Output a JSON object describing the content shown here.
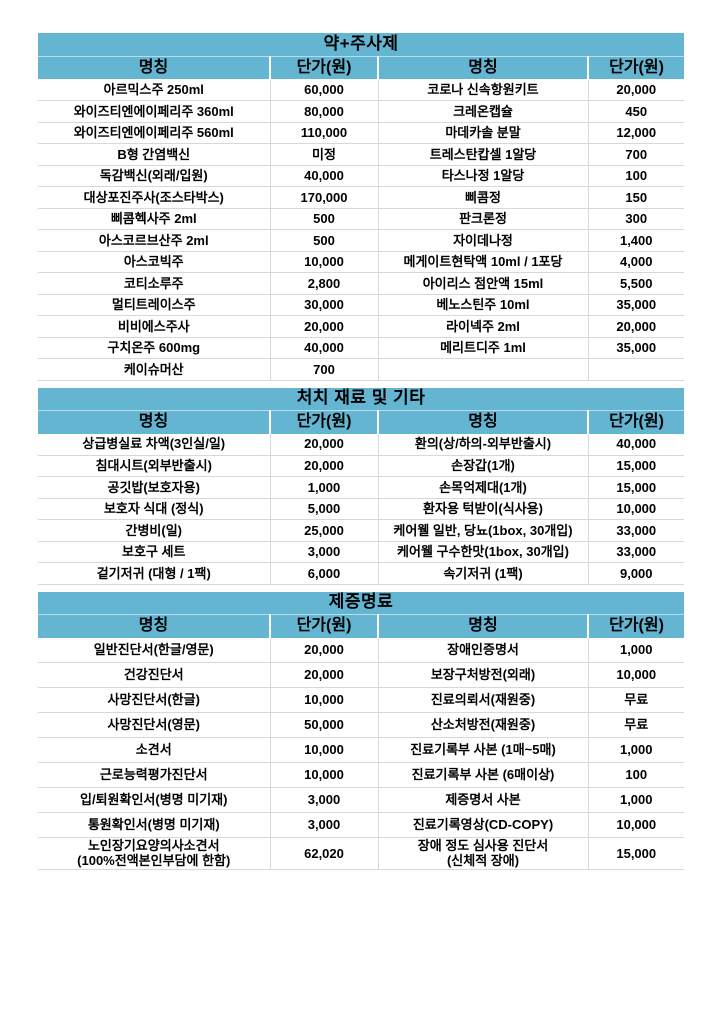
{
  "colors": {
    "header_bg": "#63b5d1",
    "grid_line": "#d8d8d8",
    "text": "#000000",
    "page_bg": "#ffffff"
  },
  "columns": [
    "명칭",
    "단가(원)",
    "명칭",
    "단가(원)"
  ],
  "sections": [
    {
      "title": "약+주사제",
      "rows": [
        [
          "아르믹스주 250ml",
          "60,000",
          "코로나 신속항원키트",
          "20,000"
        ],
        [
          "와이즈티엔에이페리주 360ml",
          "80,000",
          "크레온캡슐",
          "450"
        ],
        [
          "와이즈티엔에이페리주 560ml",
          "110,000",
          "마데카솔 분말",
          "12,000"
        ],
        [
          "B형 간염백신",
          "미정",
          "트레스탄캅셀 1알당",
          "700"
        ],
        [
          "독감백신(외래/입원)",
          "40,000",
          "타스나정 1알당",
          "100"
        ],
        [
          "대상포진주사(조스타박스)",
          "170,000",
          "삐콤정",
          "150"
        ],
        [
          "삐콤헥사주 2ml",
          "500",
          "판크론정",
          "300"
        ],
        [
          "아스코르브산주 2ml",
          "500",
          "자이데나정",
          "1,400"
        ],
        [
          "아스코빅주",
          "10,000",
          "메게이트현탁액 10ml / 1포당",
          "4,000"
        ],
        [
          "코티소루주",
          "2,800",
          "아이리스 점안액 15ml",
          "5,500"
        ],
        [
          "멀티트레이스주",
          "30,000",
          "베노스틴주 10ml",
          "35,000"
        ],
        [
          "비비에스주사",
          "20,000",
          "라이넥주 2ml",
          "20,000"
        ],
        [
          "구치온주 600mg",
          "40,000",
          "메리트디주 1ml",
          "35,000"
        ],
        [
          "케이슈머산",
          "700",
          "",
          ""
        ]
      ]
    },
    {
      "title": "처치 재료 및 기타",
      "rows": [
        [
          "상급병실료 차액(3인실/일)",
          "20,000",
          "환의(상/하의-외부반출시)",
          "40,000"
        ],
        [
          "침대시트(외부반출시)",
          "20,000",
          "손장갑(1개)",
          "15,000"
        ],
        [
          "공깃밥(보호자용)",
          "1,000",
          "손목억제대(1개)",
          "15,000"
        ],
        [
          "보호자 식대 (정식)",
          "5,000",
          "환자용 턱받이(식사용)",
          "10,000"
        ],
        [
          "간병비(일)",
          "25,000",
          "케어웰 일반, 당뇨(1box, 30개입)",
          "33,000"
        ],
        [
          "보호구 세트",
          "3,000",
          "케어웰 구수한맛(1box, 30개입)",
          "33,000"
        ],
        [
          "겉기저귀 (대형 / 1팩)",
          "6,000",
          "속기저귀 (1팩)",
          "9,000"
        ]
      ]
    },
    {
      "title": "제증명료",
      "rows": [
        [
          "일반진단서(한글/영문)",
          "20,000",
          "장애인증명서",
          "1,000"
        ],
        [
          "건강진단서",
          "20,000",
          "보장구처방전(외래)",
          "10,000"
        ],
        [
          "사망진단서(한글)",
          "10,000",
          "진료의뢰서(재원중)",
          "무료"
        ],
        [
          "사망진단서(영문)",
          "50,000",
          "산소처방전(재원중)",
          "무료"
        ],
        [
          "소견서",
          "10,000",
          "진료기록부 사본 (1매~5매)",
          "1,000"
        ],
        [
          "근로능력평가진단서",
          "10,000",
          "진료기록부 사본 (6매이상)",
          "100"
        ],
        [
          "입/퇴원확인서(병명 미기재)",
          "3,000",
          "제증명서 사본",
          "1,000"
        ],
        [
          "통원확인서(병명 미기재)",
          "3,000",
          "진료기록영상(CD-COPY)",
          "10,000"
        ],
        [
          "노인장기요양의사소견서\n(100%전액본인부담에 한함)",
          "62,020",
          "장애 정도 심사용 진단서\n(신체적 장애)",
          "15,000"
        ]
      ]
    }
  ]
}
